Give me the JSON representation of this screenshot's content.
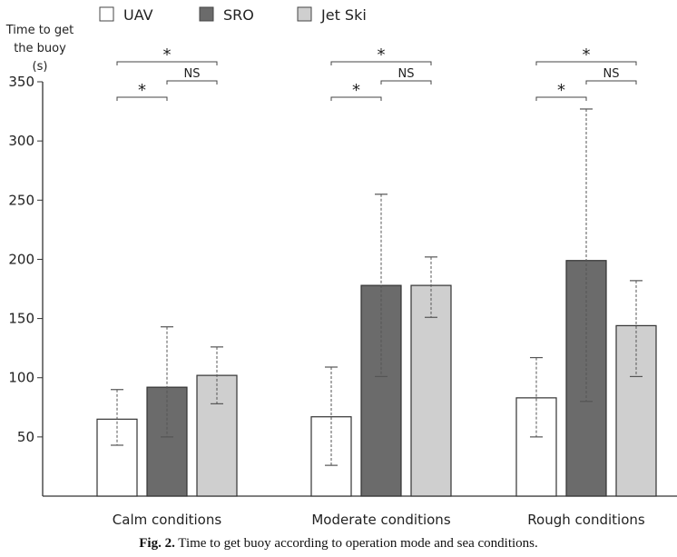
{
  "chart_data": {
    "type": "bar",
    "title": "",
    "ylabel": "Time to get the buoy (s)",
    "ylabel_lines": [
      "Time to get",
      "the buoy",
      "(s)"
    ],
    "xlabel": "",
    "ylim": [
      0,
      350
    ],
    "yticks": [
      50,
      100,
      150,
      200,
      250,
      300,
      350
    ],
    "grid": false,
    "legend_position": "top",
    "categories": [
      "Calm conditions",
      "Moderate conditions",
      "Rough conditions"
    ],
    "series": [
      {
        "name": "UAV",
        "color": "#ffffff",
        "values": [
          65,
          67,
          83
        ],
        "error_low": [
          43,
          26,
          50
        ],
        "error_high": [
          90,
          109,
          117
        ]
      },
      {
        "name": "SRO",
        "color": "#6b6b6b",
        "values": [
          92,
          178,
          199
        ],
        "error_low": [
          50,
          101,
          80
        ],
        "error_high": [
          143,
          255,
          327
        ]
      },
      {
        "name": "Jet Ski",
        "color": "#cfcfcf",
        "values": [
          102,
          178,
          144
        ],
        "error_low": [
          78,
          151,
          101
        ],
        "error_high": [
          126,
          202,
          182
        ]
      }
    ],
    "significance": [
      {
        "category": "Calm conditions",
        "pairs": [
          {
            "from": "UAV",
            "to": "Jet Ski",
            "label": "*"
          },
          {
            "from": "SRO",
            "to": "Jet Ski",
            "label": "NS"
          },
          {
            "from": "UAV",
            "to": "SRO",
            "label": "*"
          }
        ]
      },
      {
        "category": "Moderate conditions",
        "pairs": [
          {
            "from": "UAV",
            "to": "Jet Ski",
            "label": "*"
          },
          {
            "from": "SRO",
            "to": "Jet Ski",
            "label": "NS"
          },
          {
            "from": "UAV",
            "to": "SRO",
            "label": "*"
          }
        ]
      },
      {
        "category": "Rough conditions",
        "pairs": [
          {
            "from": "UAV",
            "to": "Jet Ski",
            "label": "*"
          },
          {
            "from": "SRO",
            "to": "Jet Ski",
            "label": "NS"
          },
          {
            "from": "UAV",
            "to": "SRO",
            "label": "*"
          }
        ]
      }
    ]
  },
  "caption": {
    "prefix": "Fig. 2.",
    "text": " Time to get buoy according to operation mode and sea conditions."
  }
}
